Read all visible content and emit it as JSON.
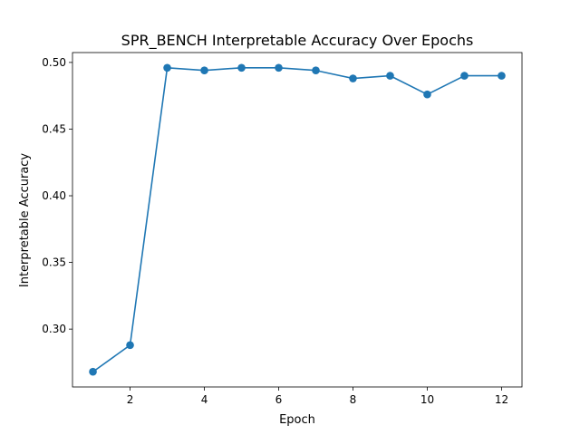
{
  "chart_data": {
    "type": "line",
    "title": "SPR_BENCH Interpretable Accuracy Over Epochs",
    "xlabel": "Epoch",
    "ylabel": "Interpretable Accuracy",
    "x": [
      1,
      2,
      3,
      4,
      5,
      6,
      7,
      8,
      9,
      10,
      11,
      12
    ],
    "series": [
      {
        "values": [
          0.268,
          0.288,
          0.496,
          0.494,
          0.496,
          0.496,
          0.494,
          0.488,
          0.49,
          0.476,
          0.49,
          0.49
        ],
        "color": "#1f77b4",
        "marker": "circle"
      }
    ],
    "xlim": [
      0.45,
      12.55
    ],
    "ylim": [
      0.2566,
      0.5074
    ],
    "xticks": [
      2,
      4,
      6,
      8,
      10,
      12
    ],
    "xtick_labels": [
      "2",
      "4",
      "6",
      "8",
      "10",
      "12"
    ],
    "yticks": [
      0.3,
      0.35,
      0.4,
      0.45,
      0.5
    ],
    "ytick_labels": [
      "0.30",
      "0.35",
      "0.40",
      "0.45",
      "0.50"
    ],
    "grid": false,
    "legend": "none"
  }
}
